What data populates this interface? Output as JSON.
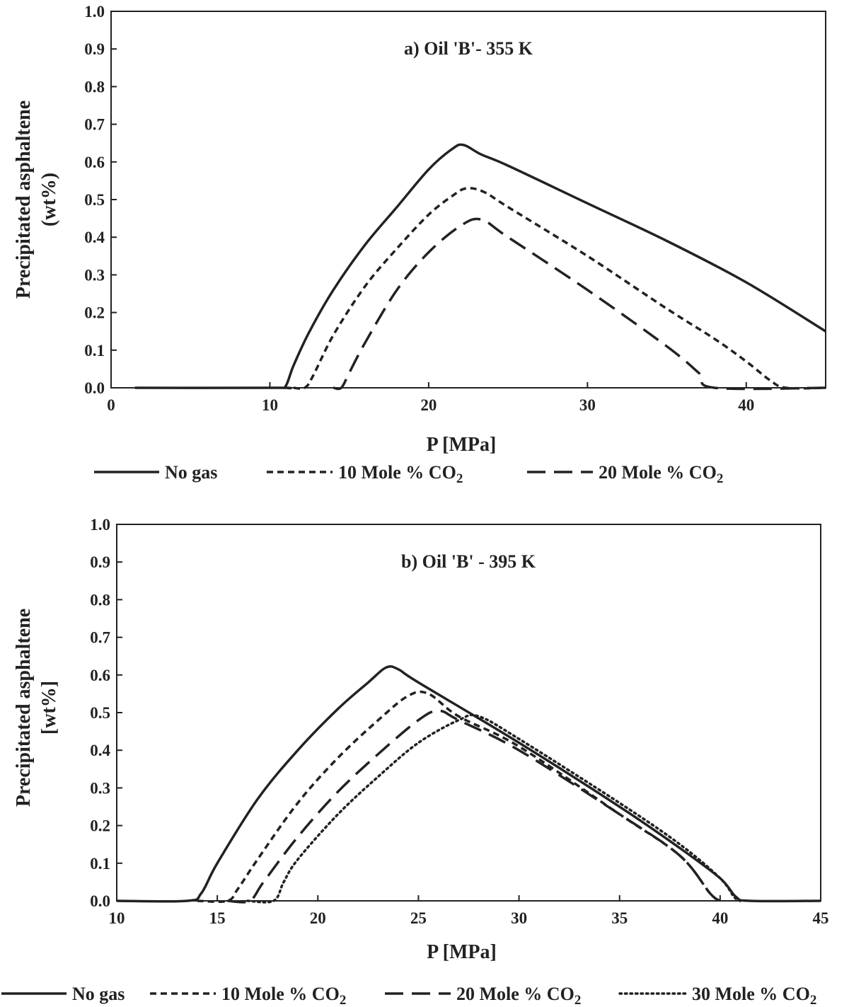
{
  "chart_data": [
    {
      "type": "line",
      "title": "a) Oil 'B'- 355 K",
      "xlabel": "P [MPa]",
      "ylabel": [
        "Precipitated asphaltene",
        "(wt%)"
      ],
      "xlim": [
        0,
        45
      ],
      "ylim": [
        0,
        1.0
      ],
      "xticks": [
        "0",
        "10",
        "20",
        "30",
        "40"
      ],
      "yticks": [
        "0.0",
        "0.1",
        "0.2",
        "0.3",
        "0.4",
        "0.5",
        "0.6",
        "0.7",
        "0.8",
        "0.9",
        "1.0"
      ],
      "legend_placement": "bottom",
      "series": [
        {
          "name": "No gas",
          "style": "solid",
          "x": [
            1.5,
            10.5,
            11.0,
            11.5,
            12.5,
            14,
            16,
            18,
            20,
            21.5,
            22.2,
            23.3,
            25,
            30,
            35,
            40,
            45
          ],
          "y": [
            0.0,
            0.0,
            0.005,
            0.06,
            0.15,
            0.26,
            0.38,
            0.48,
            0.58,
            0.635,
            0.645,
            0.62,
            0.59,
            0.49,
            0.39,
            0.28,
            0.15
          ]
        },
        {
          "name": "10 Mole % CO2",
          "style": "dash",
          "x": [
            11.5,
            12.2,
            12.7,
            14,
            16,
            18,
            20,
            21.5,
            22.4,
            23.5,
            25,
            30,
            35,
            38,
            40,
            41.5,
            42.5,
            45
          ],
          "y": [
            0.0,
            0.0,
            0.03,
            0.14,
            0.27,
            0.37,
            0.46,
            0.51,
            0.53,
            0.52,
            0.48,
            0.35,
            0.21,
            0.13,
            0.07,
            0.02,
            0.0,
            0.0
          ]
        },
        {
          "name": "20 Mole % CO2",
          "style": "longdash",
          "x": [
            14,
            14.5,
            15,
            16,
            18,
            20,
            22,
            23.3,
            25,
            30,
            35,
            37,
            38,
            45
          ],
          "y": [
            0.0,
            0.0,
            0.04,
            0.12,
            0.26,
            0.36,
            0.43,
            0.447,
            0.4,
            0.26,
            0.11,
            0.04,
            0.0,
            0.0
          ]
        }
      ]
    },
    {
      "type": "line",
      "title": "b) Oil 'B' - 395 K",
      "xlabel": "P [MPa]",
      "ylabel": [
        "Precipitated asphaltene",
        "[wt%]"
      ],
      "xlim": [
        10,
        45
      ],
      "ylim": [
        0,
        1.0
      ],
      "xticks": [
        "10",
        "15",
        "20",
        "25",
        "30",
        "35",
        "40",
        "45"
      ],
      "yticks": [
        "0.0",
        "0.1",
        "0.2",
        "0.3",
        "0.4",
        "0.5",
        "0.6",
        "0.7",
        "0.8",
        "0.9",
        "1.0"
      ],
      "legend_placement": "bottom",
      "series": [
        {
          "name": "No gas",
          "style": "solid",
          "x": [
            10,
            13.5,
            14.2,
            15,
            17,
            19,
            21,
            22.5,
            23.4,
            24,
            25,
            30,
            35,
            38,
            40,
            40.8,
            41.5,
            45
          ],
          "y": [
            0.0,
            0.0,
            0.02,
            0.1,
            0.27,
            0.4,
            0.51,
            0.58,
            0.62,
            0.615,
            0.58,
            0.42,
            0.25,
            0.14,
            0.06,
            0.01,
            0.0,
            0.0
          ]
        },
        {
          "name": "10 Mole % CO2",
          "style": "dash",
          "x": [
            14,
            15.5,
            16,
            17,
            19,
            21,
            23,
            24.5,
            25.5,
            27,
            30,
            35,
            38,
            39.5,
            40
          ],
          "y": [
            0.0,
            0.0,
            0.03,
            0.11,
            0.26,
            0.38,
            0.48,
            0.545,
            0.55,
            0.49,
            0.41,
            0.23,
            0.12,
            0.02,
            0.0
          ]
        },
        {
          "name": "20 Mole % CO2",
          "style": "longdash",
          "x": [
            15.5,
            16.6,
            17.3,
            19,
            21,
            23,
            25,
            26,
            27,
            30,
            35,
            38,
            39.5,
            40
          ],
          "y": [
            0.0,
            0.0,
            0.05,
            0.17,
            0.29,
            0.39,
            0.48,
            0.505,
            0.48,
            0.4,
            0.23,
            0.12,
            0.02,
            0.0
          ]
        },
        {
          "name": "30 Mole % CO2",
          "style": "dotted",
          "x": [
            16.5,
            17.8,
            18.3,
            19,
            21,
            23,
            25,
            27,
            28,
            30,
            35,
            38,
            40,
            40.7,
            41
          ],
          "y": [
            0.0,
            0.0,
            0.05,
            0.11,
            0.23,
            0.33,
            0.42,
            0.48,
            0.49,
            0.43,
            0.26,
            0.15,
            0.06,
            0.01,
            0.0
          ]
        }
      ]
    }
  ],
  "legends": [
    [
      {
        "label": "No gas",
        "style": "solid"
      },
      {
        "label": "10 Mole % CO",
        "sub": "2",
        "style": "dash"
      },
      {
        "label": "20 Mole % CO",
        "sub": "2",
        "style": "longdash"
      }
    ],
    [
      {
        "label": "No gas",
        "style": "solid"
      },
      {
        "label": "10 Mole % CO",
        "sub": "2",
        "style": "dash"
      },
      {
        "label": "20 Mole % CO",
        "sub": "2",
        "style": "longdash"
      },
      {
        "label": "30 Mole % CO",
        "sub": "2",
        "style": "dotted"
      }
    ]
  ]
}
